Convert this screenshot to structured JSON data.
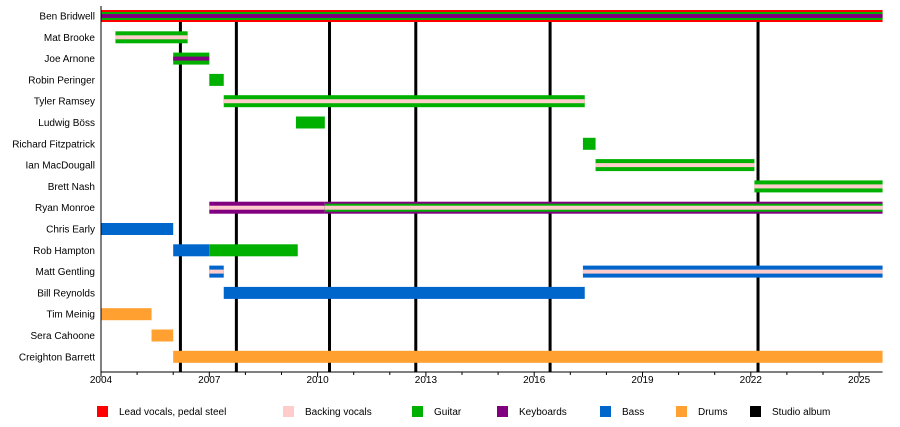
{
  "chart_data": {
    "type": "timeline",
    "xlim": [
      2004,
      2025.65
    ],
    "x_ticks": [
      2004,
      2007,
      2010,
      2013,
      2016,
      2019,
      2022,
      2025
    ],
    "minor_tick_interval_years": 1,
    "roles": {
      "vocals": {
        "label": "Lead vocals, pedal steel",
        "color": "#ff0000"
      },
      "backing": {
        "label": "Backing vocals",
        "color": "#ffcccc"
      },
      "guitar": {
        "label": "Guitar",
        "color": "#00b000"
      },
      "keyboards": {
        "label": "Keyboards",
        "color": "#800080"
      },
      "bass": {
        "label": "Bass",
        "color": "#0066cc"
      },
      "drums": {
        "label": "Drums",
        "color": "#ffa030"
      },
      "album": {
        "label": "Studio album",
        "color": "#000000"
      }
    },
    "legend_order": [
      "vocals",
      "backing",
      "guitar",
      "keyboards",
      "bass",
      "drums",
      "album"
    ],
    "legend_placement": "bottom",
    "albums": [
      2006.2,
      2007.75,
      2010.33,
      2012.72,
      2016.44,
      2022.2
    ],
    "members": [
      {
        "name": "Ben Bridwell",
        "bars": [
          {
            "start": 2004,
            "end": 2025.65,
            "roles": [
              "vocals",
              "guitar",
              "keyboards"
            ]
          }
        ]
      },
      {
        "name": "Mat Brooke",
        "bars": [
          {
            "start": 2004.4,
            "end": 2006.4,
            "roles": [
              "guitar",
              "backing"
            ]
          }
        ]
      },
      {
        "name": "Joe Arnone",
        "bars": [
          {
            "start": 2006.0,
            "end": 2007.0,
            "roles": [
              "guitar",
              "keyboards"
            ]
          }
        ]
      },
      {
        "name": "Robin Peringer",
        "bars": [
          {
            "start": 2007.0,
            "end": 2007.4,
            "roles": [
              "guitar"
            ]
          }
        ]
      },
      {
        "name": "Tyler Ramsey",
        "bars": [
          {
            "start": 2007.4,
            "end": 2017.4,
            "roles": [
              "guitar",
              "backing"
            ]
          }
        ]
      },
      {
        "name": "Ludwig Böss",
        "bars": [
          {
            "start": 2009.4,
            "end": 2010.2,
            "roles": [
              "guitar"
            ]
          }
        ]
      },
      {
        "name": "Richard Fitzpatrick",
        "bars": [
          {
            "start": 2017.35,
            "end": 2017.7,
            "roles": [
              "guitar"
            ]
          }
        ]
      },
      {
        "name": "Ian MacDougall",
        "bars": [
          {
            "start": 2017.7,
            "end": 2022.1,
            "roles": [
              "guitar",
              "backing"
            ]
          }
        ]
      },
      {
        "name": "Brett Nash",
        "bars": [
          {
            "start": 2022.1,
            "end": 2025.65,
            "roles": [
              "guitar",
              "backing"
            ]
          }
        ]
      },
      {
        "name": "Ryan Monroe",
        "bars": [
          {
            "start": 2007.0,
            "end": 2010.2,
            "roles": [
              "keyboards",
              "backing"
            ]
          },
          {
            "start": 2010.2,
            "end": 2025.65,
            "roles": [
              "keyboards",
              "guitar",
              "backing"
            ]
          }
        ]
      },
      {
        "name": "Chris Early",
        "bars": [
          {
            "start": 2004.0,
            "end": 2006.0,
            "roles": [
              "bass"
            ]
          }
        ]
      },
      {
        "name": "Rob Hampton",
        "bars": [
          {
            "start": 2006.0,
            "end": 2007.0,
            "roles": [
              "bass"
            ]
          },
          {
            "start": 2007.0,
            "end": 2009.45,
            "roles": [
              "guitar"
            ]
          }
        ]
      },
      {
        "name": "Matt Gentling",
        "bars": [
          {
            "start": 2007.0,
            "end": 2007.4,
            "roles": [
              "bass",
              "backing"
            ]
          },
          {
            "start": 2017.35,
            "end": 2025.65,
            "roles": [
              "bass",
              "backing"
            ]
          }
        ]
      },
      {
        "name": "Bill Reynolds",
        "bars": [
          {
            "start": 2007.4,
            "end": 2017.4,
            "roles": [
              "bass"
            ]
          }
        ]
      },
      {
        "name": "Tim Meinig",
        "bars": [
          {
            "start": 2004.0,
            "end": 2005.4,
            "roles": [
              "drums"
            ]
          }
        ]
      },
      {
        "name": "Sera Cahoone",
        "bars": [
          {
            "start": 2005.4,
            "end": 2006.0,
            "roles": [
              "drums"
            ]
          }
        ]
      },
      {
        "name": "Creighton Barrett",
        "bars": [
          {
            "start": 2006.0,
            "end": 2025.65,
            "roles": [
              "drums"
            ]
          }
        ]
      }
    ]
  }
}
